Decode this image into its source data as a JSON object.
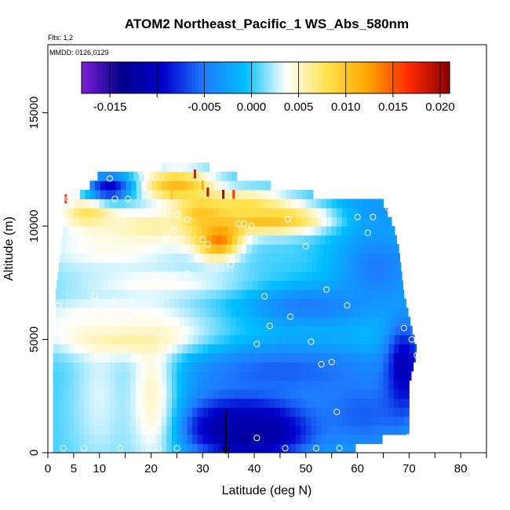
{
  "chart_data": {
    "type": "heatmap",
    "title": "ATOM2 Northeast_Pacific_1 WS_Abs_580nm",
    "notes": [
      "Flts: 1,2",
      "MMDD: 0126,0129"
    ],
    "xlabel": "Latitude (deg N)",
    "ylabel": "Altitude (m)",
    "xlim": [
      0,
      85
    ],
    "ylim": [
      0,
      18000
    ],
    "x_ticks": [
      0,
      5,
      10,
      20,
      30,
      40,
      50,
      60,
      70,
      80
    ],
    "x_minor_ticks": [
      15,
      25,
      35,
      45,
      55,
      65,
      75,
      85
    ],
    "y_ticks": [
      0,
      5000,
      10000,
      15000
    ],
    "colorbar": {
      "range": [
        -0.018,
        0.021
      ],
      "ticks": [
        -0.015,
        -0.005,
        0.0,
        0.005,
        0.01,
        0.015,
        0.02
      ],
      "tick_labels": [
        "-0.015",
        "-0.005",
        "0.000",
        "0.005",
        "0.010",
        "0.015",
        "0.020"
      ],
      "boundaries": [
        -0.015,
        -0.01,
        -0.005,
        0.0,
        0.005,
        0.01,
        0.015,
        0.02
      ],
      "colors": [
        "#7B1FD6",
        "#00008B",
        "#0000CD",
        "#1E7BFF",
        "#00BFFF",
        "#FFFFFF",
        "#FFE24D",
        "#FFA500",
        "#FF2A00",
        "#8B0000"
      ]
    },
    "grid_layer_step_m": 400,
    "layer_edges": [
      {
        "alt": 0,
        "lat_min": 1,
        "lat_max": 57
      },
      {
        "alt": 1000,
        "lat_min": 1,
        "lat_max": 70
      },
      {
        "alt": 3000,
        "lat_min": 1,
        "lat_max": 70
      },
      {
        "alt": 4500,
        "lat_min": 1,
        "lat_max": 71.5
      },
      {
        "alt": 6000,
        "lat_min": 1.5,
        "lat_max": 70
      },
      {
        "alt": 7000,
        "lat_min": 1.5,
        "lat_max": 69
      },
      {
        "alt": 8000,
        "lat_min": 2,
        "lat_max": 68.5
      },
      {
        "alt": 9000,
        "lat_min": 2.5,
        "lat_max": 68
      },
      {
        "alt": 10000,
        "lat_min": 3,
        "lat_max": 67
      },
      {
        "alt": 11000,
        "lat_min": 3,
        "lat_max": 65
      },
      {
        "alt": 11500,
        "lat_min": 7,
        "lat_max": 48
      },
      {
        "alt": 12300,
        "lat_min": 10,
        "lat_max": 35
      },
      {
        "alt": 12700,
        "lat_min": 26,
        "lat_max": 30
      }
    ],
    "features": [
      {
        "lat": 40,
        "alt": 1000,
        "value": -0.017,
        "sx": 7,
        "sy": 700
      },
      {
        "lat": 38,
        "alt": 1300,
        "value": -0.012,
        "sx": 9,
        "sy": 1100
      },
      {
        "lat": 61,
        "alt": 1700,
        "value": -0.006,
        "sx": 8,
        "sy": 1400
      },
      {
        "lat": 45,
        "alt": 3600,
        "value": -0.006,
        "sx": 16,
        "sy": 1000
      },
      {
        "lat": 69,
        "alt": 3800,
        "value": -0.011,
        "sx": 2.5,
        "sy": 1500
      },
      {
        "lat": 50,
        "alt": 6500,
        "value": -0.005,
        "sx": 10,
        "sy": 700
      },
      {
        "lat": 64,
        "alt": 8200,
        "value": -0.005,
        "sx": 6,
        "sy": 1300
      },
      {
        "lat": 62,
        "alt": 10500,
        "value": -0.004,
        "sx": 6,
        "sy": 800
      },
      {
        "lat": 20,
        "alt": 2500,
        "value": 0.005,
        "sx": 3.5,
        "sy": 2500
      },
      {
        "lat": 10,
        "alt": 2500,
        "value": 0.003,
        "sx": 4,
        "sy": 2500
      },
      {
        "lat": 15,
        "alt": 5200,
        "value": 0.007,
        "sx": 10,
        "sy": 600
      },
      {
        "lat": 12,
        "alt": 6000,
        "value": 0.004,
        "sx": 12,
        "sy": 700
      },
      {
        "lat": 22,
        "alt": 7500,
        "value": 0.004,
        "sx": 11,
        "sy": 450
      },
      {
        "lat": 12,
        "alt": 9000,
        "value": 0.004,
        "sx": 12,
        "sy": 800
      },
      {
        "lat": 33,
        "alt": 9600,
        "value": 0.016,
        "sx": 3,
        "sy": 650
      },
      {
        "lat": 30,
        "alt": 10400,
        "value": 0.013,
        "sx": 3.5,
        "sy": 600
      },
      {
        "lat": 25,
        "alt": 11800,
        "value": 0.011,
        "sx": 5,
        "sy": 500
      },
      {
        "lat": 42,
        "alt": 10300,
        "value": 0.011,
        "sx": 9,
        "sy": 450
      },
      {
        "lat": 38,
        "alt": 11000,
        "value": 0.008,
        "sx": 6,
        "sy": 400
      },
      {
        "lat": 8,
        "alt": 10600,
        "value": 0.008,
        "sx": 4,
        "sy": 500
      },
      {
        "lat": 12,
        "alt": 11700,
        "value": -0.01,
        "sx": 3,
        "sy": 400
      },
      {
        "lat": 20,
        "alt": 10000,
        "value": 0.006,
        "sx": 7,
        "sy": 500
      }
    ],
    "spikes": [
      {
        "lat": 28.5,
        "alt": 12100,
        "value": 0.018
      },
      {
        "lat": 34,
        "alt": 11200,
        "value": 0.02
      },
      {
        "lat": 36,
        "alt": 11200,
        "value": 0.016
      },
      {
        "lat": 30,
        "alt": 11600,
        "value": 0.012
      },
      {
        "lat": 24,
        "alt": 11200,
        "value": 0.01
      },
      {
        "lat": 3.5,
        "alt": 11000,
        "value": 0.017
      },
      {
        "lat": 31,
        "alt": 11300,
        "value": 0.019
      }
    ],
    "samples": [
      [
        12,
        12100
      ],
      [
        18,
        12400
      ],
      [
        4,
        11200
      ],
      [
        13,
        11200
      ],
      [
        15.5,
        11200
      ],
      [
        17,
        10600
      ],
      [
        20,
        10600
      ],
      [
        25,
        10500
      ],
      [
        27,
        10300
      ],
      [
        37,
        10100
      ],
      [
        38,
        10100
      ],
      [
        39.5,
        10000
      ],
      [
        46.5,
        10300
      ],
      [
        60,
        10400
      ],
      [
        63,
        10400
      ],
      [
        66,
        10800
      ],
      [
        23,
        9600
      ],
      [
        24.5,
        9800
      ],
      [
        30,
        9400
      ],
      [
        31,
        9200
      ],
      [
        39,
        9600
      ],
      [
        50,
        9100
      ],
      [
        62,
        9700
      ],
      [
        27,
        7900
      ],
      [
        35.5,
        8300
      ],
      [
        9,
        6900
      ],
      [
        13,
        6700
      ],
      [
        16,
        6600
      ],
      [
        42,
        6900
      ],
      [
        54,
        7200
      ],
      [
        58,
        6500
      ],
      [
        2,
        6500
      ],
      [
        5.5,
        5800
      ],
      [
        22,
        5100
      ],
      [
        40.5,
        4800
      ],
      [
        43,
        5600
      ],
      [
        47,
        6000
      ],
      [
        51,
        4900
      ],
      [
        53,
        3900
      ],
      [
        55,
        4000
      ],
      [
        69,
        5500
      ],
      [
        70.5,
        5000
      ],
      [
        71.5,
        4300
      ],
      [
        56,
        1800
      ],
      [
        40.5,
        650
      ],
      [
        70,
        700
      ],
      [
        46,
        200
      ],
      [
        52,
        200
      ],
      [
        56.5,
        200
      ],
      [
        7,
        200
      ],
      [
        14,
        200
      ],
      [
        21.5,
        200
      ],
      [
        25,
        200
      ],
      [
        3,
        200
      ]
    ],
    "marker": {
      "lat": 34.5,
      "alt": 600,
      "shape": "arrow-down"
    }
  }
}
